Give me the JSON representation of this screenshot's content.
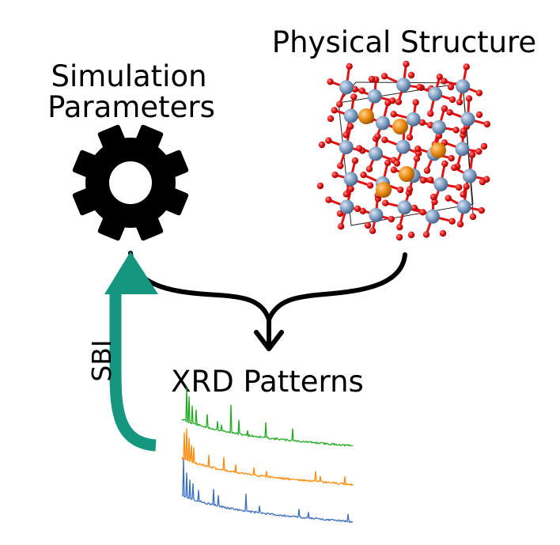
{
  "labels": {
    "sim_line1": "Simulation",
    "sim_line2": "Parameters",
    "physical": "Physical Structure",
    "xrd": "XRD Patterns",
    "sbi": "SBI"
  },
  "colors": {
    "sbi_arrow": "#14967f",
    "xrd_green": "#22aa22",
    "xrd_orange": "#ff8c0e",
    "xrd_blue": "#3a6fbf",
    "atom_metal": "#e98a12",
    "atom_oxygen": "#e31212",
    "atom_cation": "#7f9fc3",
    "gear": "#000000"
  },
  "icons": {
    "gear": "gear-icon",
    "structure": "crystal-structure-image"
  }
}
